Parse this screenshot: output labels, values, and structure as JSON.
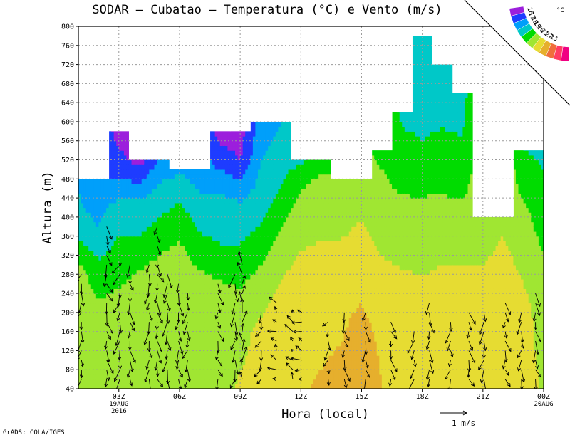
{
  "title": "SODAR – Cubatao – Temperatura (°C) e Vento (m/s)",
  "credit": "GrADS: COLA/IGES",
  "chart_data": {
    "type": "heatmap",
    "title": "SODAR – Cubatao – Temperatura (°C) e Vento (m/s)",
    "xlabel": "Hora (local)",
    "ylabel": "Altura (m)",
    "ylim": [
      40,
      800
    ],
    "yticks": [
      40,
      80,
      120,
      160,
      200,
      240,
      280,
      320,
      360,
      400,
      440,
      480,
      520,
      560,
      600,
      640,
      680,
      720,
      760,
      800
    ],
    "xlim": [
      0,
      23
    ],
    "xticks": [
      {
        "x": 2,
        "label": "03Z",
        "sub1": "19AUG",
        "sub2": "2016"
      },
      {
        "x": 5,
        "label": "06Z",
        "sub1": "",
        "sub2": ""
      },
      {
        "x": 8,
        "label": "09Z",
        "sub1": "",
        "sub2": ""
      },
      {
        "x": 11,
        "label": "12Z",
        "sub1": "",
        "sub2": ""
      },
      {
        "x": 14,
        "label": "15Z",
        "sub1": "",
        "sub2": ""
      },
      {
        "x": 17,
        "label": "18Z",
        "sub1": "",
        "sub2": ""
      },
      {
        "x": 20,
        "label": "21Z",
        "sub1": "",
        "sub2": ""
      },
      {
        "x": 23,
        "label": "00Z",
        "sub1": "20AUG",
        "sub2": ""
      }
    ],
    "colorbar": {
      "unit": "°C",
      "levels": [
        16,
        17,
        18,
        19,
        20,
        21,
        22,
        23
      ],
      "colors": [
        "#9c1fdc",
        "#1e3cff",
        "#009ffa",
        "#00c8c8",
        "#00dc00",
        "#a0e632",
        "#e6dc32",
        "#e6af2d",
        "#f06e3c",
        "#ff3c64",
        "#f00082"
      ]
    },
    "vector_scale": {
      "label": "1   m/s",
      "speed": 1
    },
    "top_boundary": [
      480,
      480,
      580,
      520,
      520,
      500,
      500,
      580,
      580,
      600,
      600,
      520,
      520,
      480,
      480,
      540,
      620,
      780,
      720,
      660,
      400,
      400,
      540,
      540
    ],
    "columns": [
      {
        "hour": 0,
        "profile": [
          [
            40,
            21
          ],
          [
            280,
            20.5
          ],
          [
            380,
            18.5
          ],
          [
            480,
            17.8
          ]
        ]
      },
      {
        "hour": 1,
        "profile": [
          [
            40,
            20.5
          ],
          [
            180,
            20.5
          ],
          [
            300,
            19.2
          ],
          [
            380,
            18
          ],
          [
            480,
            17
          ]
        ]
      },
      {
        "hour": 2,
        "profile": [
          [
            40,
            20.5
          ],
          [
            200,
            20.5
          ],
          [
            300,
            19.5
          ],
          [
            420,
            18.5
          ],
          [
            480,
            17
          ],
          [
            580,
            15.5
          ]
        ]
      },
      {
        "hour": 3,
        "profile": [
          [
            40,
            20.7
          ],
          [
            240,
            20.7
          ],
          [
            340,
            19.2
          ],
          [
            420,
            18.4
          ],
          [
            490,
            16.5
          ],
          [
            520,
            15.5
          ]
        ]
      },
      {
        "hour": 4,
        "profile": [
          [
            40,
            20.8
          ],
          [
            260,
            20.8
          ],
          [
            360,
            19.5
          ],
          [
            440,
            18.5
          ],
          [
            520,
            17.2
          ]
        ]
      },
      {
        "hour": 5,
        "profile": [
          [
            40,
            20.8
          ],
          [
            270,
            20.8
          ],
          [
            380,
            19.7
          ],
          [
            460,
            18.6
          ],
          [
            500,
            17.8
          ]
        ]
      },
      {
        "hour": 6,
        "profile": [
          [
            40,
            20.7
          ],
          [
            240,
            20.7
          ],
          [
            340,
            19.3
          ],
          [
            440,
            18.2
          ],
          [
            500,
            17.4
          ]
        ]
      },
      {
        "hour": 7,
        "profile": [
          [
            40,
            20.7
          ],
          [
            220,
            20.7
          ],
          [
            320,
            19.2
          ],
          [
            440,
            18.2
          ],
          [
            520,
            16.6
          ],
          [
            580,
            15.5
          ]
        ]
      },
      {
        "hour": 8,
        "profile": [
          [
            40,
            21.1
          ],
          [
            200,
            20.6
          ],
          [
            300,
            19.4
          ],
          [
            420,
            18.3
          ],
          [
            520,
            16
          ],
          [
            580,
            15.5
          ]
        ]
      },
      {
        "hour": 9,
        "profile": [
          [
            40,
            21.3
          ],
          [
            160,
            21.2
          ],
          [
            260,
            20.5
          ],
          [
            360,
            19.2
          ],
          [
            480,
            18.2
          ],
          [
            600,
            17.4
          ]
        ]
      },
      {
        "hour": 10,
        "profile": [
          [
            40,
            21.6
          ],
          [
            120,
            21.6
          ],
          [
            240,
            21.2
          ],
          [
            340,
            20.5
          ],
          [
            440,
            19.2
          ],
          [
            600,
            18
          ]
        ]
      },
      {
        "hour": 11,
        "profile": [
          [
            40,
            21.9
          ],
          [
            140,
            21.8
          ],
          [
            280,
            21.3
          ],
          [
            380,
            20.7
          ],
          [
            460,
            20
          ],
          [
            520,
            18.8
          ]
        ]
      },
      {
        "hour": 12,
        "profile": [
          [
            40,
            22.1
          ],
          [
            160,
            21.8
          ],
          [
            280,
            21.3
          ],
          [
            400,
            20.8
          ],
          [
            480,
            20.2
          ],
          [
            520,
            19.5
          ]
        ]
      },
      {
        "hour": 13,
        "profile": [
          [
            40,
            22.3
          ],
          [
            200,
            21.8
          ],
          [
            320,
            21.2
          ],
          [
            420,
            20.6
          ],
          [
            480,
            20
          ]
        ]
      },
      {
        "hour": 14,
        "profile": [
          [
            40,
            22.8
          ],
          [
            190,
            22.2
          ],
          [
            290,
            21.5
          ],
          [
            420,
            20.9
          ],
          [
            480,
            20.2
          ]
        ]
      },
      {
        "hour": 15,
        "profile": [
          [
            40,
            22
          ],
          [
            150,
            21.8
          ],
          [
            260,
            21.3
          ],
          [
            360,
            20.8
          ],
          [
            460,
            20.2
          ],
          [
            540,
            19.8
          ]
        ]
      },
      {
        "hour": 16,
        "profile": [
          [
            40,
            21.7
          ],
          [
            150,
            21.6
          ],
          [
            260,
            21.2
          ],
          [
            360,
            20.6
          ],
          [
            460,
            19.9
          ],
          [
            540,
            19.3
          ],
          [
            620,
            18.8
          ]
        ]
      },
      {
        "hour": 17,
        "profile": [
          [
            40,
            21.8
          ],
          [
            160,
            21.7
          ],
          [
            240,
            21.2
          ],
          [
            330,
            20.7
          ],
          [
            460,
            19.9
          ],
          [
            560,
            19
          ],
          [
            780,
            18.2
          ]
        ]
      },
      {
        "hour": 18,
        "profile": [
          [
            40,
            21.8
          ],
          [
            180,
            21.7
          ],
          [
            260,
            21.2
          ],
          [
            360,
            20.7
          ],
          [
            460,
            19.9
          ],
          [
            560,
            19.2
          ],
          [
            640,
            18.6
          ],
          [
            720,
            18.2
          ]
        ]
      },
      {
        "hour": 19,
        "profile": [
          [
            40,
            21.8
          ],
          [
            180,
            21.7
          ],
          [
            260,
            21.2
          ],
          [
            340,
            20.8
          ],
          [
            440,
            20
          ],
          [
            520,
            19.2
          ],
          [
            660,
            18.6
          ]
        ]
      },
      {
        "hour": 20,
        "profile": [
          [
            40,
            21.7
          ],
          [
            180,
            21.6
          ],
          [
            260,
            21.3
          ],
          [
            330,
            20.8
          ],
          [
            400,
            20.6
          ]
        ]
      },
      {
        "hour": 21,
        "profile": [
          [
            40,
            21.7
          ],
          [
            200,
            21.7
          ],
          [
            300,
            21.3
          ],
          [
            380,
            20.9
          ],
          [
            400,
            20.8
          ]
        ]
      },
      {
        "hour": 22,
        "profile": [
          [
            40,
            21.4
          ],
          [
            200,
            21.3
          ],
          [
            300,
            20.8
          ],
          [
            400,
            20.3
          ],
          [
            540,
            19
          ]
        ]
      },
      {
        "hour": 23,
        "profile": [
          [
            40,
            20.9
          ],
          [
            240,
            20.5
          ],
          [
            400,
            19.5
          ],
          [
            540,
            18.8
          ]
        ]
      }
    ],
    "wind_columns": [
      {
        "hour": 0.15,
        "top": 280,
        "u": -0.2,
        "v": -1.1
      },
      {
        "hour": 1.4,
        "top": 380,
        "u": 0.3,
        "v": -1.2
      },
      {
        "hour": 2.05,
        "top": 320,
        "u": -0.3,
        "v": -1.3
      },
      {
        "hour": 2.55,
        "top": 300,
        "u": 0.2,
        "v": -1.1
      },
      {
        "hour": 3.5,
        "top": 300,
        "u": -0.1,
        "v": -1.2
      },
      {
        "hour": 3.9,
        "top": 380,
        "u": 0.2,
        "v": -1.1
      },
      {
        "hour": 4.4,
        "top": 280,
        "u": -0.1,
        "v": -1.3
      },
      {
        "hour": 4.95,
        "top": 260,
        "u": 0.1,
        "v": -1.2
      },
      {
        "hour": 5.4,
        "top": 240,
        "u": -0.2,
        "v": -1.1
      },
      {
        "hour": 6.9,
        "top": 260,
        "u": 0.2,
        "v": -1.0
      },
      {
        "hour": 7.75,
        "top": 280,
        "u": -0.1,
        "v": -1.3
      },
      {
        "hour": 8.1,
        "top": 300,
        "u": 0.1,
        "v": 1.2
      },
      {
        "hour": 9.05,
        "top": 200,
        "u": -0.4,
        "v": -0.9
      },
      {
        "hour": 9.8,
        "top": 220,
        "u": -0.6,
        "v": 0.4
      },
      {
        "hour": 10.6,
        "top": 200,
        "u": -0.5,
        "v": 0.5
      },
      {
        "hour": 11.05,
        "top": 200,
        "u": -0.8,
        "v": 0.2
      },
      {
        "hour": 12.35,
        "top": 180,
        "u": -0.2,
        "v": -0.8
      },
      {
        "hour": 13.15,
        "top": 200,
        "u": 0.2,
        "v": -1.0
      },
      {
        "hour": 14.2,
        "top": 200,
        "u": 0.1,
        "v": -1.2
      },
      {
        "hour": 15.45,
        "top": 180,
        "u": 0.3,
        "v": -1.0
      },
      {
        "hour": 16.6,
        "top": 160,
        "u": -0.3,
        "v": -1.1
      },
      {
        "hour": 17.35,
        "top": 220,
        "u": 0.1,
        "v": -1.2
      },
      {
        "hour": 18.4,
        "top": 180,
        "u": -0.2,
        "v": -1.0
      },
      {
        "hour": 19.3,
        "top": 200,
        "u": 0.3,
        "v": -1.1
      },
      {
        "hour": 20.05,
        "top": 200,
        "u": -0.2,
        "v": -1.2
      },
      {
        "hour": 21.1,
        "top": 220,
        "u": 0.2,
        "v": -1.0
      },
      {
        "hour": 21.9,
        "top": 200,
        "u": -0.1,
        "v": -1.1
      },
      {
        "hour": 22.6,
        "top": 240,
        "u": 0.2,
        "v": -1.2
      }
    ]
  }
}
